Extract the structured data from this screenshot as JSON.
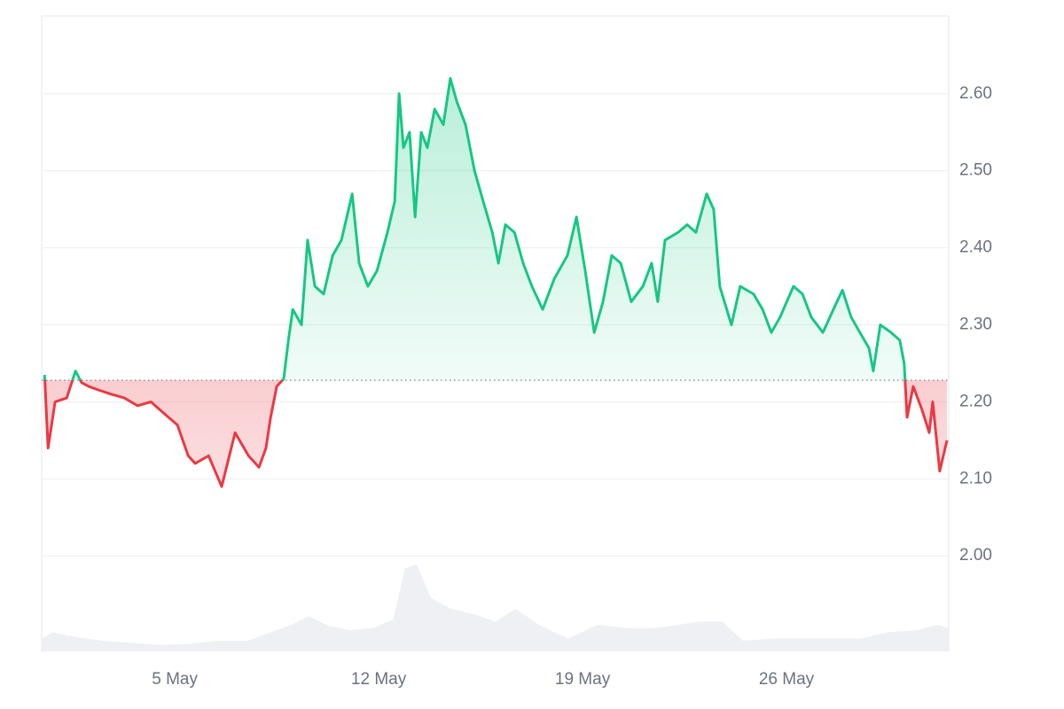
{
  "chart_data": {
    "type": "line",
    "x": [
      0.53,
      0.65,
      0.89,
      1.29,
      1.59,
      1.8,
      2.05,
      2.41,
      2.81,
      3.27,
      3.72,
      4.18,
      4.63,
      5.09,
      5.46,
      5.7,
      6.16,
      6.61,
      7.07,
      7.53,
      7.89,
      8.13,
      8.29,
      8.5,
      8.74,
      8.9,
      9.05,
      9.35,
      9.56,
      9.81,
      10.11,
      10.42,
      10.72,
      11.09,
      11.33,
      11.63,
      11.94,
      12.3,
      12.55,
      12.7,
      12.85,
      13.06,
      13.25,
      13.46,
      13.67,
      13.92,
      14.22,
      14.46,
      14.68,
      14.98,
      15.29,
      15.59,
      15.9,
      16.11,
      16.35,
      16.66,
      16.96,
      17.26,
      17.63,
      18.03,
      18.48,
      18.79,
      19.09,
      19.4,
      19.7,
      20.0,
      20.31,
      20.67,
      21.07,
      21.37,
      21.58,
      21.83,
      22.28,
      22.59,
      22.89,
      23.26,
      23.5,
      23.71,
      24.11,
      24.41,
      24.87,
      25.18,
      25.48,
      25.78,
      26.24,
      26.55,
      26.85,
      27.25,
      27.61,
      27.92,
      28.22,
      28.52,
      28.83,
      28.98,
      29.22,
      29.59,
      29.89,
      30.04,
      30.14,
      30.35,
      30.65,
      30.9,
      31.02,
      31.26,
      31.51
    ],
    "series": [
      {
        "color_up": "#16c784",
        "color_down": "#ea3943",
        "values": [
          2.235,
          2.14,
          2.2,
          2.205,
          2.24,
          2.225,
          2.22,
          2.215,
          2.21,
          2.205,
          2.195,
          2.2,
          2.185,
          2.17,
          2.13,
          2.12,
          2.13,
          2.09,
          2.16,
          2.13,
          2.115,
          2.14,
          2.18,
          2.22,
          2.23,
          2.28,
          2.32,
          2.3,
          2.41,
          2.35,
          2.34,
          2.39,
          2.41,
          2.47,
          2.38,
          2.35,
          2.37,
          2.42,
          2.46,
          2.6,
          2.53,
          2.55,
          2.44,
          2.55,
          2.53,
          2.58,
          2.56,
          2.62,
          2.59,
          2.56,
          2.5,
          2.46,
          2.42,
          2.38,
          2.43,
          2.42,
          2.38,
          2.35,
          2.32,
          2.36,
          2.39,
          2.44,
          2.37,
          2.29,
          2.33,
          2.39,
          2.38,
          2.33,
          2.35,
          2.38,
          2.33,
          2.41,
          2.42,
          2.43,
          2.42,
          2.47,
          2.45,
          2.35,
          2.3,
          2.35,
          2.34,
          2.32,
          2.29,
          2.31,
          2.35,
          2.34,
          2.31,
          2.29,
          2.32,
          2.345,
          2.31,
          2.29,
          2.27,
          2.24,
          2.3,
          2.29,
          2.28,
          2.25,
          2.18,
          2.22,
          2.19,
          2.16,
          2.2,
          2.11,
          2.15
        ]
      }
    ],
    "baseline": 2.228,
    "volume": {
      "color": "#eef0f3",
      "ylim": [
        0,
        100
      ],
      "x": [
        0.45,
        0.8,
        1.5,
        2.5,
        3.5,
        4.5,
        5.5,
        6.5,
        7.5,
        8.3,
        9,
        9.6,
        10.3,
        11,
        11.8,
        12.5,
        12.9,
        13.3,
        13.8,
        14.5,
        15.3,
        16,
        16.7,
        17.5,
        18.5,
        19.5,
        20.5,
        21.5,
        22.3,
        23,
        23.8,
        24.5,
        25.5,
        26.5,
        27.5,
        28.5,
        29.5,
        30.5,
        31.2,
        31.55
      ],
      "values": [
        12,
        18,
        14,
        10,
        8,
        6,
        7,
        10,
        10,
        18,
        25,
        33,
        24,
        20,
        22,
        30,
        78,
        82,
        50,
        40,
        35,
        28,
        40,
        25,
        12,
        25,
        22,
        22,
        25,
        28,
        28,
        10,
        12,
        12,
        12,
        12,
        18,
        20,
        25,
        22
      ]
    },
    "xlim": [
      0.43,
      31.57
    ],
    "xticks": [
      {
        "value": 5,
        "label": "5 May"
      },
      {
        "value": 12,
        "label": "12 May"
      },
      {
        "value": 19,
        "label": "19 May"
      },
      {
        "value": 26,
        "label": "26 May"
      }
    ],
    "ylim": [
      1.876,
      2.701
    ],
    "yticks": [
      {
        "value": 2,
        "label": "2.00"
      },
      {
        "value": 2.1,
        "label": "2.10"
      },
      {
        "value": 2.2,
        "label": "2.20"
      },
      {
        "value": 2.3,
        "label": "2.30"
      },
      {
        "value": 2.4,
        "label": "2.40"
      },
      {
        "value": 2.5,
        "label": "2.50"
      },
      {
        "value": 2.6,
        "label": "2.60"
      }
    ],
    "grid": true
  }
}
